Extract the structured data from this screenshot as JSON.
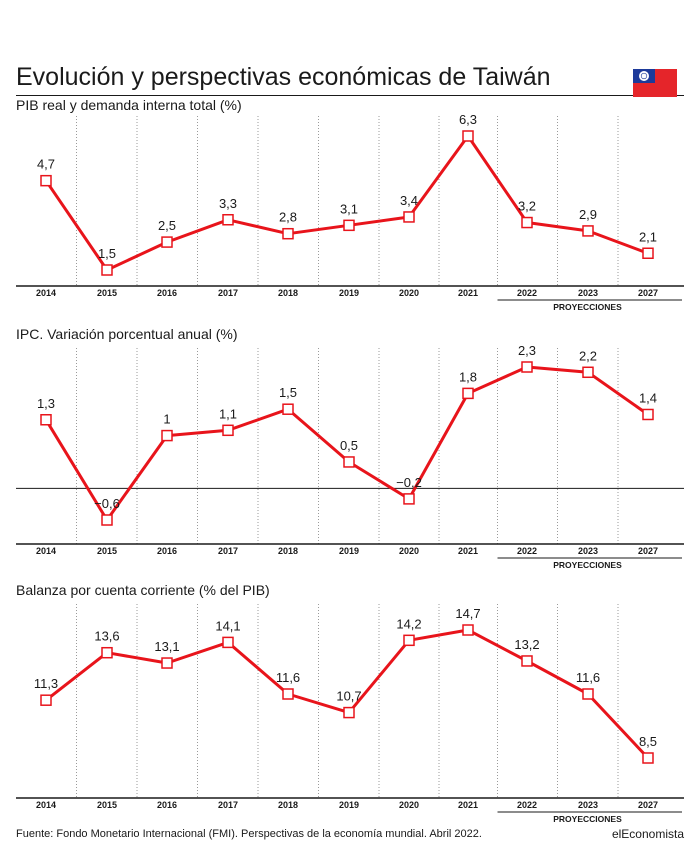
{
  "title": "Evolución y perspectivas económicas de Taiwán",
  "source": "Fuente: Fondo Monetario Internacional (FMI). Perspectivas de la economía mundial. Abril 2022.",
  "brand": "elEconomista",
  "projections_label": "PROYECCIONES",
  "colors": {
    "line": "#e8141b",
    "marker_fill": "#ffffff",
    "grid": "#9a9a9a",
    "axis": "#1a1a1a",
    "flag_red": "#e5252a",
    "flag_blue": "#1d3a9a"
  },
  "chart_data": [
    {
      "type": "line",
      "title": "PIB real y demanda interna total (%)",
      "categories": [
        "2014",
        "2015",
        "2016",
        "2017",
        "2018",
        "2019",
        "2020",
        "2021",
        "2022",
        "2023",
        "2027"
      ],
      "values": [
        4.7,
        1.5,
        2.5,
        3.3,
        2.8,
        3.1,
        3.4,
        6.3,
        3.2,
        2.9,
        2.1
      ],
      "labels": [
        "4,7",
        "1,5",
        "2,5",
        "3,3",
        "2,8",
        "3,1",
        "3,4",
        "6,3",
        "3,2",
        "2,9",
        "2,1"
      ],
      "projection_categories": [
        "2022",
        "2023",
        "2027"
      ],
      "ylim": [
        0.6,
        6.7
      ],
      "zero_line": false
    },
    {
      "type": "line",
      "title": "IPC. Variación porcentual anual (%)",
      "categories": [
        "2014",
        "2015",
        "2016",
        "2017",
        "2018",
        "2019",
        "2020",
        "2021",
        "2022",
        "2023",
        "2027"
      ],
      "values": [
        1.3,
        -0.6,
        1.0,
        1.1,
        1.5,
        0.5,
        -0.2,
        1.8,
        2.3,
        2.2,
        1.4
      ],
      "labels": [
        "1,3",
        "−0,6",
        "1",
        "1,1",
        "1,5",
        "0,5",
        "−0,2",
        "1,8",
        "2,3",
        "2,2",
        "1,4"
      ],
      "projection_categories": [
        "2022",
        "2023",
        "2027"
      ],
      "ylim": [
        -1.0,
        2.55
      ],
      "zero_line": true
    },
    {
      "type": "line",
      "title": "Balanza por cuenta corriente (% del PIB)",
      "categories": [
        "2014",
        "2015",
        "2016",
        "2017",
        "2018",
        "2019",
        "2020",
        "2021",
        "2022",
        "2023",
        "2027"
      ],
      "values": [
        11.3,
        13.6,
        13.1,
        14.1,
        11.6,
        10.7,
        14.2,
        14.7,
        13.2,
        11.6,
        8.5
      ],
      "labels": [
        "11,3",
        "13,6",
        "13,1",
        "14,1",
        "11,6",
        "10,7",
        "14,2",
        "14,7",
        "13,2",
        "11,6",
        "8,5"
      ],
      "projection_categories": [
        "2022",
        "2023",
        "2027"
      ],
      "ylim": [
        6.8,
        15.6
      ],
      "zero_line": false
    }
  ]
}
